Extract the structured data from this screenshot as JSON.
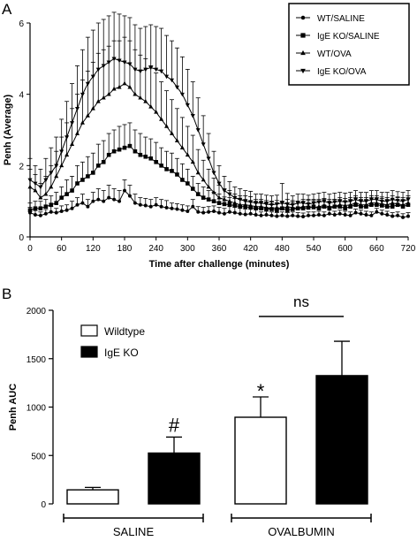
{
  "chart_data": [
    {
      "panel": "A",
      "type": "line",
      "xlabel": "Time after challenge (minutes)",
      "ylabel": "Penh (Average)",
      "xlim": [
        0,
        720
      ],
      "ylim": [
        0,
        6
      ],
      "xticks": [
        0,
        60,
        120,
        180,
        240,
        300,
        360,
        420,
        480,
        540,
        600,
        660,
        720
      ],
      "yticks": [
        0,
        2,
        4,
        6
      ],
      "grid": false,
      "legend_position": "top-right",
      "error_bars": "upper only",
      "x": [
        0,
        10,
        20,
        30,
        40,
        50,
        60,
        70,
        80,
        90,
        100,
        110,
        120,
        130,
        140,
        150,
        160,
        170,
        180,
        190,
        200,
        210,
        220,
        230,
        240,
        250,
        260,
        270,
        280,
        290,
        300,
        310,
        320,
        330,
        340,
        350,
        360,
        370,
        380,
        390,
        400,
        410,
        420,
        430,
        440,
        450,
        460,
        470,
        480,
        490,
        500,
        510,
        520,
        530,
        540,
        550,
        560,
        570,
        580,
        590,
        600,
        610,
        620,
        630,
        640,
        650,
        660,
        670,
        680,
        690,
        700,
        710,
        720
      ],
      "series": [
        {
          "name": "WT/SALINE",
          "marker": "circle",
          "values": [
            0.68,
            0.62,
            0.6,
            0.65,
            0.7,
            0.68,
            0.72,
            0.75,
            0.8,
            0.9,
            0.95,
            0.85,
            1.0,
            1.05,
            1.0,
            1.1,
            1.05,
            1.0,
            1.3,
            1.15,
            0.95,
            0.9,
            0.88,
            0.85,
            0.9,
            0.85,
            0.82,
            0.8,
            0.78,
            0.75,
            0.72,
            0.85,
            0.7,
            0.68,
            0.7,
            0.72,
            0.68,
            0.65,
            0.7,
            0.68,
            0.65,
            0.63,
            0.65,
            0.62,
            0.6,
            0.62,
            0.6,
            0.58,
            0.6,
            0.58,
            0.6,
            0.58,
            0.57,
            0.6,
            0.6,
            0.62,
            0.6,
            0.65,
            0.62,
            0.65,
            0.62,
            0.6,
            0.68,
            0.65,
            0.62,
            0.6,
            0.7,
            0.65,
            0.62,
            0.58,
            0.6,
            0.55,
            0.58
          ],
          "errors": [
            0.15,
            0.12,
            0.1,
            0.12,
            0.15,
            0.12,
            0.15,
            0.15,
            0.2,
            0.2,
            0.25,
            0.2,
            0.25,
            0.3,
            0.3,
            0.35,
            0.3,
            0.3,
            0.3,
            0.3,
            0.25,
            0.2,
            0.2,
            0.2,
            0.2,
            0.2,
            0.2,
            0.15,
            0.15,
            0.15,
            0.15,
            0.2,
            0.15,
            0.15,
            0.15,
            0.15,
            0.15,
            0.15,
            0.15,
            0.15,
            0.15,
            0.15,
            0.15,
            0.15,
            0.1,
            0.1,
            0.1,
            0.1,
            0.1,
            0.1,
            0.1,
            0.1,
            0.1,
            0.1,
            0.1,
            0.1,
            0.1,
            0.1,
            0.1,
            0.1,
            0.1,
            0.1,
            0.1,
            0.1,
            0.1,
            0.1,
            0.1,
            0.1,
            0.1,
            0.1,
            0.1,
            0.1,
            0.1
          ]
        },
        {
          "name": "IgE KO/SALINE",
          "marker": "square",
          "values": [
            0.75,
            0.8,
            0.8,
            0.85,
            0.9,
            0.95,
            1.1,
            1.2,
            1.3,
            1.5,
            1.6,
            1.7,
            1.8,
            2.0,
            2.1,
            2.3,
            2.4,
            2.45,
            2.5,
            2.55,
            2.4,
            2.3,
            2.25,
            2.2,
            2.1,
            2.0,
            1.9,
            1.85,
            1.75,
            1.6,
            1.5,
            1.35,
            1.2,
            1.1,
            1.05,
            1.0,
            0.95,
            0.92,
            0.9,
            0.88,
            0.85,
            0.85,
            0.82,
            0.8,
            0.8,
            0.78,
            0.78,
            0.75,
            0.8,
            0.75,
            0.78,
            0.8,
            0.8,
            0.82,
            0.85,
            0.8,
            0.85,
            0.8,
            0.85,
            0.85,
            0.8,
            0.85,
            0.9,
            0.85,
            0.85,
            0.9,
            0.9,
            0.88,
            0.85,
            0.85,
            0.9,
            0.85,
            0.9
          ],
          "errors": [
            0.2,
            0.2,
            0.2,
            0.2,
            0.25,
            0.3,
            0.3,
            0.4,
            0.4,
            0.5,
            0.5,
            0.55,
            0.55,
            0.6,
            0.6,
            0.6,
            0.6,
            0.65,
            0.65,
            0.65,
            0.6,
            0.6,
            0.55,
            0.55,
            0.55,
            0.5,
            0.5,
            0.5,
            0.45,
            0.45,
            0.4,
            0.35,
            0.3,
            0.3,
            0.25,
            0.25,
            0.25,
            0.2,
            0.2,
            0.2,
            0.2,
            0.2,
            0.2,
            0.2,
            0.2,
            0.2,
            0.2,
            0.2,
            0.2,
            0.2,
            0.2,
            0.2,
            0.2,
            0.2,
            0.2,
            0.2,
            0.2,
            0.2,
            0.2,
            0.2,
            0.2,
            0.2,
            0.2,
            0.2,
            0.2,
            0.2,
            0.2,
            0.2,
            0.2,
            0.2,
            0.2,
            0.2,
            0.2
          ]
        },
        {
          "name": "WT/OVA",
          "marker": "triangle-up",
          "values": [
            1.4,
            1.3,
            1.1,
            1.2,
            1.4,
            1.7,
            2.0,
            2.3,
            2.6,
            2.9,
            3.2,
            3.4,
            3.6,
            3.8,
            3.9,
            4.0,
            4.15,
            4.2,
            4.3,
            4.2,
            4.0,
            3.9,
            3.8,
            3.65,
            3.5,
            3.3,
            3.1,
            2.9,
            2.7,
            2.5,
            2.3,
            2.1,
            1.8,
            1.6,
            1.4,
            1.25,
            1.1,
            1.05,
            1.0,
            0.95,
            0.9,
            0.9,
            0.88,
            0.85,
            0.85,
            0.82,
            0.8,
            0.82,
            0.8,
            0.85,
            0.82,
            0.8,
            0.85,
            0.85,
            0.82,
            0.85,
            0.88,
            0.85,
            0.85,
            0.9,
            0.88,
            0.9,
            0.95,
            0.9,
            0.9,
            0.95,
            0.95,
            0.92,
            0.9,
            0.95,
            0.92,
            0.9,
            0.95
          ],
          "errors": [
            0.5,
            0.45,
            0.4,
            0.5,
            0.6,
            0.7,
            0.8,
            0.9,
            1.0,
            1.1,
            1.2,
            1.25,
            1.3,
            1.35,
            1.35,
            1.35,
            1.35,
            1.3,
            1.3,
            1.3,
            1.25,
            1.2,
            1.2,
            1.15,
            1.1,
            1.05,
            1.0,
            0.95,
            0.9,
            0.85,
            0.8,
            0.75,
            0.65,
            0.55,
            0.5,
            0.4,
            0.35,
            0.3,
            0.3,
            0.25,
            0.25,
            0.25,
            0.25,
            0.2,
            0.2,
            0.2,
            0.2,
            0.2,
            0.2,
            0.2,
            0.2,
            0.2,
            0.2,
            0.2,
            0.2,
            0.2,
            0.2,
            0.2,
            0.2,
            0.2,
            0.2,
            0.2,
            0.2,
            0.2,
            0.2,
            0.2,
            0.2,
            0.2,
            0.2,
            0.2,
            0.2,
            0.2,
            0.2
          ]
        },
        {
          "name": "IgE KO/OVA",
          "marker": "triangle-down",
          "values": [
            1.6,
            1.5,
            1.4,
            1.6,
            1.8,
            2.0,
            2.4,
            2.8,
            3.2,
            3.6,
            4.0,
            4.3,
            4.5,
            4.7,
            4.8,
            4.9,
            5.0,
            4.95,
            4.9,
            4.85,
            4.7,
            4.65,
            4.7,
            4.75,
            4.7,
            4.65,
            4.5,
            4.4,
            4.2,
            4.0,
            3.7,
            3.4,
            3.0,
            2.6,
            2.2,
            1.8,
            1.5,
            1.3,
            1.2,
            1.1,
            1.05,
            1.0,
            0.98,
            0.95,
            0.95,
            0.92,
            0.9,
            0.92,
            0.95,
            0.92,
            0.9,
            0.95,
            0.95,
            0.92,
            0.95,
            0.98,
            1.0,
            0.95,
            0.98,
            1.0,
            0.98,
            1.0,
            1.05,
            1.0,
            1.0,
            1.05,
            1.05,
            1.0,
            1.0,
            1.05,
            1.02,
            1.0,
            1.05
          ],
          "errors": [
            0.6,
            0.5,
            0.5,
            0.6,
            0.7,
            0.8,
            0.9,
            1.0,
            1.1,
            1.2,
            1.25,
            1.3,
            1.3,
            1.3,
            1.3,
            1.3,
            1.3,
            1.3,
            1.3,
            1.3,
            1.25,
            1.2,
            1.2,
            1.2,
            1.2,
            1.2,
            1.15,
            1.1,
            1.1,
            1.05,
            1.0,
            0.95,
            0.9,
            0.8,
            0.7,
            0.6,
            0.5,
            0.4,
            0.35,
            0.3,
            0.3,
            0.3,
            0.3,
            0.25,
            0.25,
            0.25,
            0.25,
            0.25,
            0.55,
            0.3,
            0.25,
            0.25,
            0.25,
            0.25,
            0.25,
            0.25,
            0.25,
            0.25,
            0.25,
            0.25,
            0.25,
            0.25,
            0.25,
            0.25,
            0.25,
            0.25,
            0.25,
            0.25,
            0.25,
            0.25,
            0.25,
            0.25,
            0.25
          ]
        }
      ]
    },
    {
      "panel": "B",
      "type": "bar",
      "ylabel": "Penh AUC",
      "ylim": [
        0,
        2000
      ],
      "yticks": [
        0,
        500,
        1000,
        1500,
        2000
      ],
      "categories": [
        "SALINE",
        "OVALBUMIN"
      ],
      "legend_position": "top-left",
      "error_bars": "upper only",
      "series": [
        {
          "name": "Wildtype",
          "fill": "#ffffff",
          "values": [
            145,
            895
          ],
          "errors": [
            25,
            210
          ]
        },
        {
          "name": "IgE KO",
          "fill": "#000000",
          "values": [
            525,
            1325
          ],
          "errors": [
            165,
            355
          ]
        }
      ],
      "annotations": [
        {
          "text": "#",
          "category": "SALINE",
          "series": "IgE KO"
        },
        {
          "text": "*",
          "category": "OVALBUMIN",
          "series": "Wildtype"
        },
        {
          "text": "ns",
          "category": "OVALBUMIN",
          "spans": [
            "Wildtype",
            "IgE KO"
          ]
        }
      ]
    }
  ],
  "panel_labels": {
    "a": "A",
    "b": "B"
  }
}
